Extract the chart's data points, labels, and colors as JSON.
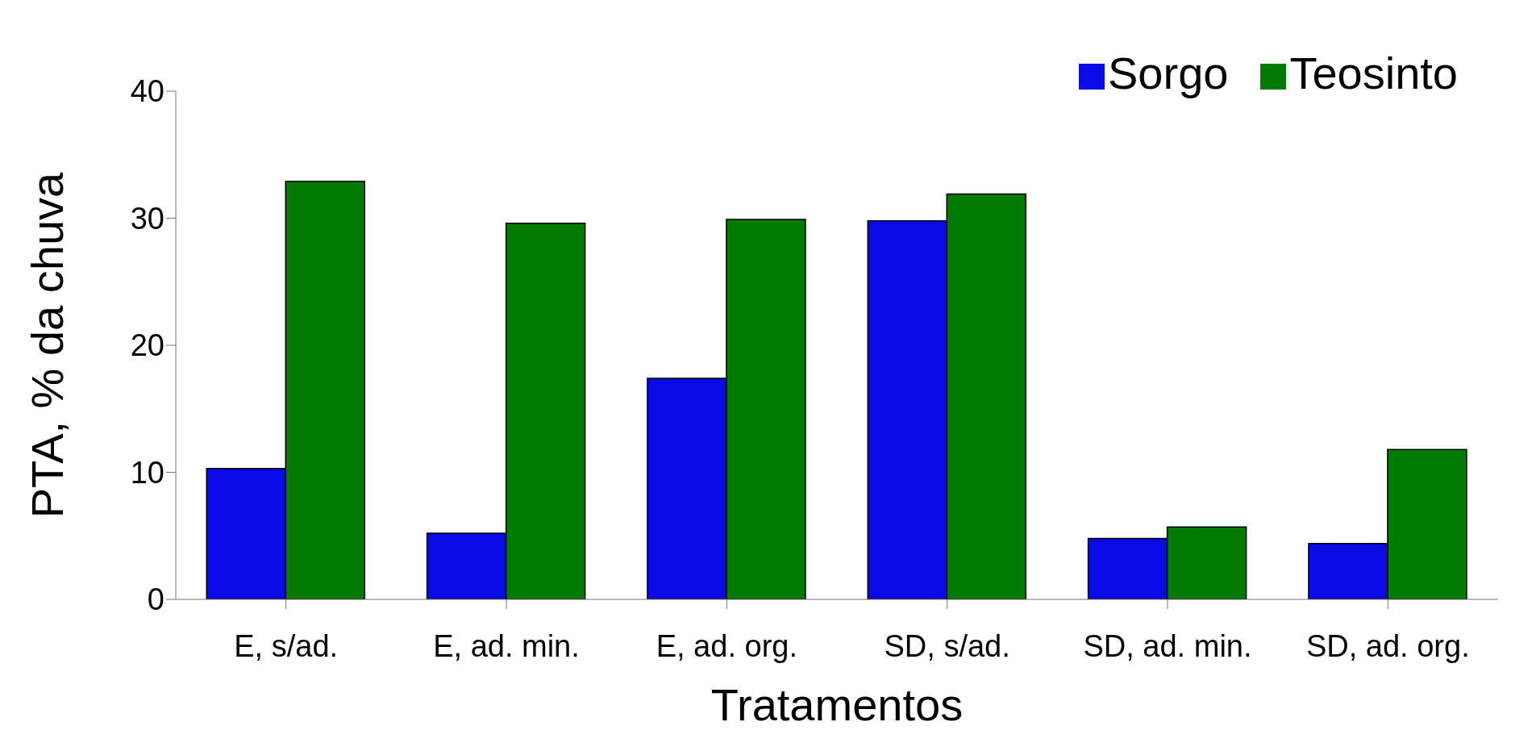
{
  "chart_data": {
    "type": "bar",
    "xlabel": "Tratamentos",
    "ylabel": "PTA, % da chuva",
    "categories": [
      "E, s/ad.",
      "E, ad. min.",
      "E, ad. org.",
      "SD, s/ad.",
      "SD, ad. min.",
      "SD, ad. org."
    ],
    "series": [
      {
        "name": "Sorgo",
        "color": "#0a0ae6",
        "values": [
          10.3,
          5.2,
          17.4,
          29.8,
          4.8,
          4.4
        ]
      },
      {
        "name": "Teosinto",
        "color": "#007a00",
        "values": [
          32.9,
          29.6,
          29.9,
          31.9,
          5.7,
          11.8
        ]
      }
    ],
    "ylim": [
      0,
      40
    ],
    "yticks": [
      0,
      10,
      20,
      30,
      40
    ],
    "grid": false,
    "legend": "top right"
  }
}
